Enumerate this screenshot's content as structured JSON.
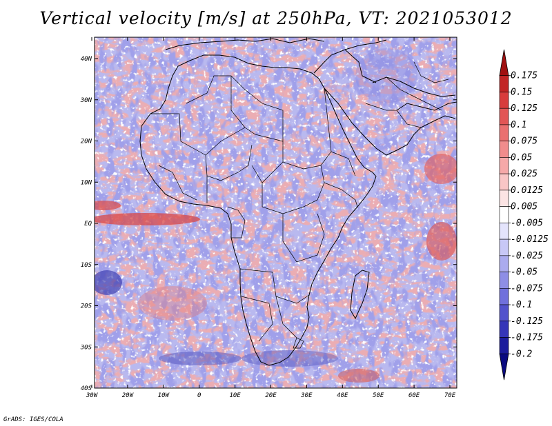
{
  "title": "Vertical velocity [m/s] at 250hPa, VT: 2021053012",
  "footer": "GrADS: IGES/COLA",
  "lat_labels": [
    "40N",
    "30N",
    "20N",
    "10N",
    "EQ",
    "10S",
    "20S",
    "30S",
    "40S"
  ],
  "lon_labels": [
    "30W",
    "20W",
    "10W",
    "0",
    "10E",
    "20E",
    "30E",
    "40E",
    "50E",
    "60E",
    "70E"
  ],
  "colorbar": {
    "levels": [
      "0.175",
      "0.15",
      "0.125",
      "0.1",
      "0.075",
      "0.05",
      "0.025",
      "0.0125",
      "0.005",
      "-0.005",
      "-0.0125",
      "-0.025",
      "-0.05",
      "-0.075",
      "-0.1",
      "-0.125",
      "-0.175",
      "-0.2"
    ],
    "colors": [
      "#a01010",
      "#c22525",
      "#d83c3c",
      "#e25555",
      "#ea7070",
      "#f08c8c",
      "#f5a8a8",
      "#f9c6c6",
      "#fce4e4",
      "#ffffff",
      "#e4e4fc",
      "#c8c8f6",
      "#ababee",
      "#8e8ee6",
      "#7070dc",
      "#5252cc",
      "#3535b8",
      "#1c1c9c",
      "#0a0a80"
    ]
  }
}
